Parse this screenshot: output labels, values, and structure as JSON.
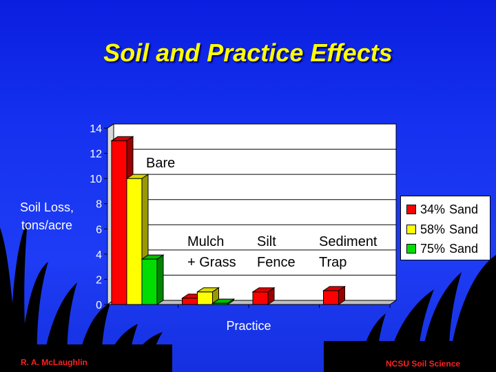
{
  "slide": {
    "title": "Soil and Practice Effects",
    "footer_left": "R. A. McLaughlin",
    "footer_right": "NCSU Soil Science"
  },
  "chart_data": {
    "type": "bar",
    "categories": [
      "Bare",
      "Mulch + Grass",
      "Silt Fence",
      "Sediment Trap"
    ],
    "category_labels": [
      [
        "Bare"
      ],
      [
        "Mulch",
        "+ Grass"
      ],
      [
        "Silt",
        "Fence"
      ],
      [
        "Sediment",
        "Trap"
      ]
    ],
    "series": [
      {
        "name": "34% Sand",
        "values": [
          13,
          0.5,
          1.0,
          1.1
        ],
        "color": "#ff0000"
      },
      {
        "name": "58% Sand",
        "values": [
          10,
          1.0,
          0,
          0
        ],
        "color": "#ffff00"
      },
      {
        "name": "75% Sand",
        "values": [
          3.6,
          0.1,
          0,
          0
        ],
        "color": "#00dd00"
      }
    ],
    "legend_entries": [
      {
        "pct": "34%",
        "label": "Sand"
      },
      {
        "pct": "58%",
        "label": "Sand"
      },
      {
        "pct": "75%",
        "label": "Sand"
      }
    ],
    "xlabel": "Practice",
    "ylabel": [
      "Soil Loss,",
      "tons/acre"
    ],
    "ylim": [
      0,
      14
    ],
    "yticks": [
      "0",
      "2",
      "4",
      "6",
      "8",
      "10",
      "12",
      "14"
    ],
    "grid": true,
    "legend_position": "right"
  }
}
